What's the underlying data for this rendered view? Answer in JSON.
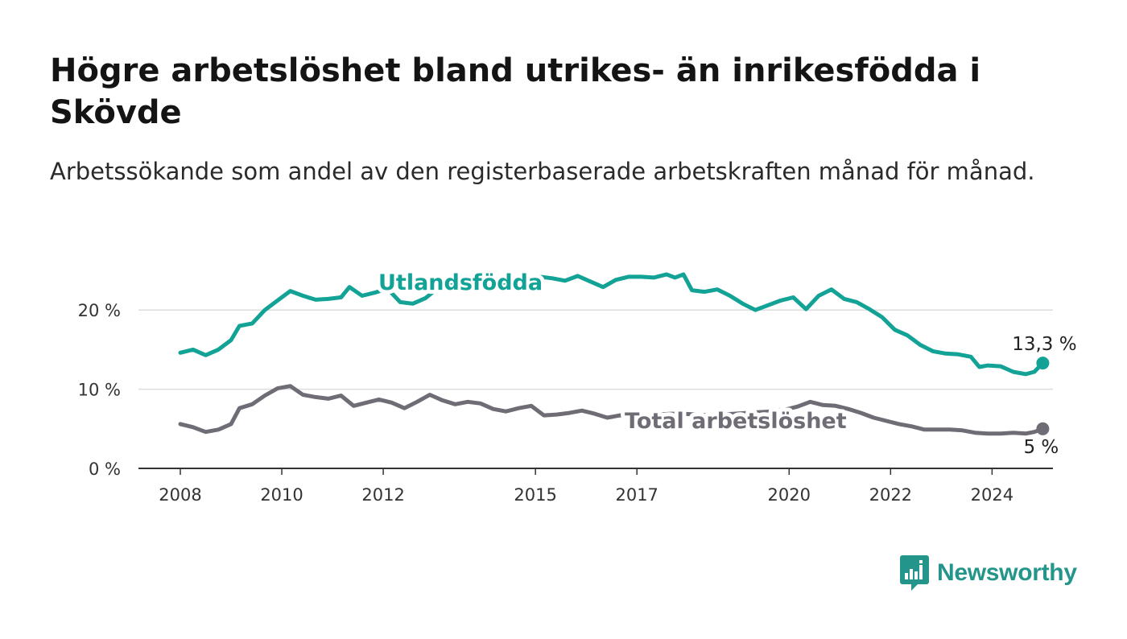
{
  "title": "Högre arbetslöshet bland utrikes- än inrikesfödda i Skövde",
  "subtitle": "Arbetssökande som andel av den registerbaserade arbetskraften månad för månad.",
  "brand": "Newsworthy",
  "colors": {
    "foreign": "#13a396",
    "total": "#6f6c75",
    "grid": "#dddddd",
    "axis": "#333333"
  },
  "chart_data": {
    "type": "line",
    "title": "Högre arbetslöshet bland utrikes- än inrikesfödda i Skövde",
    "subtitle": "Arbetssökande som andel av den registerbaserade arbetskraften månad för månad.",
    "xlabel": "",
    "ylabel": "",
    "x_ticks": [
      "2008",
      "2010",
      "2012",
      "2015",
      "2017",
      "2020",
      "2022",
      "2024"
    ],
    "y_ticks": [
      "0 %",
      "10 %",
      "20 %"
    ],
    "xlim": [
      "2008-01",
      "2025-06"
    ],
    "ylim": [
      0,
      25
    ],
    "grid": "horizontal",
    "legend": "inline labels",
    "series": [
      {
        "name": "Utlandsfödda",
        "end_label": "13,3 %",
        "points": [
          [
            "2008-01",
            14.6
          ],
          [
            "2008-04",
            15.0
          ],
          [
            "2008-07",
            14.3
          ],
          [
            "2008-10",
            15.0
          ],
          [
            "2009-01",
            16.2
          ],
          [
            "2009-03",
            18.0
          ],
          [
            "2009-06",
            18.3
          ],
          [
            "2009-09",
            20.0
          ],
          [
            "2009-12",
            21.2
          ],
          [
            "2010-03",
            22.4
          ],
          [
            "2010-06",
            21.8
          ],
          [
            "2010-09",
            21.3
          ],
          [
            "2010-12",
            21.4
          ],
          [
            "2011-03",
            21.6
          ],
          [
            "2011-05",
            22.9
          ],
          [
            "2011-08",
            21.8
          ],
          [
            "2011-11",
            22.2
          ],
          [
            "2012-02",
            22.7
          ],
          [
            "2012-05",
            21.0
          ],
          [
            "2012-08",
            20.8
          ],
          [
            "2012-11",
            21.5
          ],
          [
            "2013-02",
            22.8
          ],
          [
            "2013-05",
            23.3
          ],
          [
            "2013-08",
            23.5
          ],
          [
            "2013-11",
            23.7
          ],
          [
            "2014-02",
            23.9
          ],
          [
            "2014-05",
            23.2
          ],
          [
            "2014-08",
            23.6
          ],
          [
            "2014-11",
            24.0
          ],
          [
            "2015-02",
            24.2
          ],
          [
            "2015-05",
            24.0
          ],
          [
            "2015-08",
            23.7
          ],
          [
            "2015-11",
            24.3
          ],
          [
            "2016-02",
            23.6
          ],
          [
            "2016-05",
            22.9
          ],
          [
            "2016-08",
            23.8
          ],
          [
            "2016-11",
            24.2
          ],
          [
            "2017-02",
            24.2
          ],
          [
            "2017-05",
            24.1
          ],
          [
            "2017-08",
            24.5
          ],
          [
            "2017-10",
            24.1
          ],
          [
            "2017-12",
            24.5
          ],
          [
            "2018-02",
            22.5
          ],
          [
            "2018-05",
            22.3
          ],
          [
            "2018-08",
            22.6
          ],
          [
            "2018-11",
            21.8
          ],
          [
            "2019-02",
            20.8
          ],
          [
            "2019-05",
            20.0
          ],
          [
            "2019-08",
            20.6
          ],
          [
            "2019-11",
            21.2
          ],
          [
            "2020-02",
            21.6
          ],
          [
            "2020-05",
            20.1
          ],
          [
            "2020-08",
            21.8
          ],
          [
            "2020-11",
            22.6
          ],
          [
            "2021-02",
            21.4
          ],
          [
            "2021-05",
            21.0
          ],
          [
            "2021-08",
            20.1
          ],
          [
            "2021-11",
            19.1
          ],
          [
            "2022-02",
            17.5
          ],
          [
            "2022-05",
            16.8
          ],
          [
            "2022-08",
            15.6
          ],
          [
            "2022-11",
            14.8
          ],
          [
            "2023-02",
            14.5
          ],
          [
            "2023-05",
            14.4
          ],
          [
            "2023-08",
            14.1
          ],
          [
            "2023-10",
            12.8
          ],
          [
            "2023-12",
            13.0
          ],
          [
            "2024-03",
            12.9
          ],
          [
            "2024-06",
            12.2
          ],
          [
            "2024-09",
            11.9
          ],
          [
            "2024-11",
            12.2
          ],
          [
            "2025-01",
            13.3
          ]
        ]
      },
      {
        "name": "Total arbetslöshet",
        "end_label": "5 %",
        "points": [
          [
            "2008-01",
            5.6
          ],
          [
            "2008-04",
            5.2
          ],
          [
            "2008-07",
            4.6
          ],
          [
            "2008-10",
            4.9
          ],
          [
            "2009-01",
            5.6
          ],
          [
            "2009-03",
            7.6
          ],
          [
            "2009-06",
            8.1
          ],
          [
            "2009-09",
            9.2
          ],
          [
            "2009-12",
            10.1
          ],
          [
            "2010-03",
            10.4
          ],
          [
            "2010-06",
            9.3
          ],
          [
            "2010-09",
            9.0
          ],
          [
            "2010-12",
            8.8
          ],
          [
            "2011-03",
            9.2
          ],
          [
            "2011-06",
            7.9
          ],
          [
            "2011-09",
            8.3
          ],
          [
            "2011-12",
            8.7
          ],
          [
            "2012-03",
            8.3
          ],
          [
            "2012-06",
            7.6
          ],
          [
            "2012-09",
            8.4
          ],
          [
            "2012-12",
            9.3
          ],
          [
            "2013-03",
            8.6
          ],
          [
            "2013-06",
            8.1
          ],
          [
            "2013-09",
            8.4
          ],
          [
            "2013-12",
            8.2
          ],
          [
            "2014-03",
            7.5
          ],
          [
            "2014-06",
            7.2
          ],
          [
            "2014-09",
            7.6
          ],
          [
            "2014-12",
            7.9
          ],
          [
            "2015-03",
            6.7
          ],
          [
            "2015-06",
            6.8
          ],
          [
            "2015-09",
            7.0
          ],
          [
            "2015-12",
            7.3
          ],
          [
            "2016-03",
            6.9
          ],
          [
            "2016-06",
            6.4
          ],
          [
            "2016-09",
            6.7
          ],
          [
            "2016-12",
            6.6
          ],
          [
            "2017-03",
            6.5
          ],
          [
            "2017-06",
            6.8
          ],
          [
            "2017-09",
            6.9
          ],
          [
            "2017-12",
            6.9
          ],
          [
            "2018-03",
            6.8
          ],
          [
            "2018-06",
            6.7
          ],
          [
            "2018-09",
            6.8
          ],
          [
            "2018-12",
            6.9
          ],
          [
            "2019-03",
            7.0
          ],
          [
            "2019-06",
            7.1
          ],
          [
            "2019-09",
            7.2
          ],
          [
            "2019-12",
            7.4
          ],
          [
            "2020-03",
            7.8
          ],
          [
            "2020-06",
            8.4
          ],
          [
            "2020-09",
            8.0
          ],
          [
            "2020-12",
            7.9
          ],
          [
            "2021-03",
            7.5
          ],
          [
            "2021-06",
            7.0
          ],
          [
            "2021-09",
            6.4
          ],
          [
            "2021-12",
            6.0
          ],
          [
            "2022-03",
            5.6
          ],
          [
            "2022-06",
            5.3
          ],
          [
            "2022-09",
            4.9
          ],
          [
            "2022-12",
            4.9
          ],
          [
            "2023-03",
            4.9
          ],
          [
            "2023-06",
            4.8
          ],
          [
            "2023-09",
            4.5
          ],
          [
            "2023-12",
            4.4
          ],
          [
            "2024-03",
            4.4
          ],
          [
            "2024-06",
            4.5
          ],
          [
            "2024-09",
            4.4
          ],
          [
            "2024-11",
            4.6
          ],
          [
            "2025-01",
            5.0
          ]
        ]
      }
    ]
  }
}
